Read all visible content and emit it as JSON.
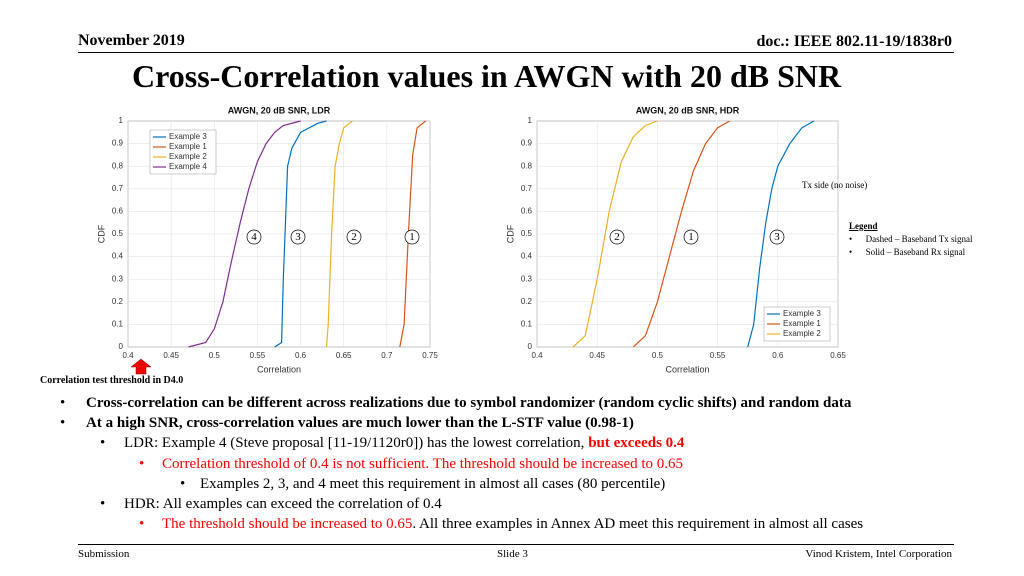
{
  "header": {
    "date": "November 2019",
    "doc": "doc.: IEEE 802.11-19/1838r0"
  },
  "title": "Cross-Correlation values in AWGN with 20 dB SNR",
  "chart_data": [
    {
      "type": "line",
      "title": "AWGN, 20 dB SNR, LDR",
      "x_label": "Correlation",
      "y_label": "CDF",
      "xlim": [
        0.4,
        0.75
      ],
      "xticks": [
        0.4,
        0.45,
        0.5,
        0.55,
        0.6,
        0.65,
        0.7,
        0.75
      ],
      "ylim": [
        0,
        1
      ],
      "yticks": [
        0,
        0.1,
        0.2,
        0.3,
        0.4,
        0.5,
        0.6,
        0.7,
        0.8,
        0.9,
        1
      ],
      "grid": true,
      "legend": "upper left",
      "series": [
        {
          "name": "Example 3",
          "color": "#0072bd",
          "x": [
            0.57,
            0.578,
            0.58,
            0.585,
            0.59,
            0.6,
            0.62,
            0.63
          ],
          "values": [
            0,
            0.02,
            0.3,
            0.8,
            0.88,
            0.95,
            0.99,
            1
          ]
        },
        {
          "name": "Example 1",
          "color": "#d95319",
          "x": [
            0.715,
            0.72,
            0.725,
            0.73,
            0.735,
            0.745
          ],
          "values": [
            0,
            0.1,
            0.5,
            0.85,
            0.97,
            1
          ]
        },
        {
          "name": "Example 2",
          "color": "#edb120",
          "x": [
            0.63,
            0.632,
            0.636,
            0.64,
            0.645,
            0.65,
            0.66
          ],
          "values": [
            0,
            0.1,
            0.5,
            0.8,
            0.9,
            0.97,
            1
          ]
        },
        {
          "name": "Example 4",
          "color": "#7e2f8e",
          "x": [
            0.47,
            0.49,
            0.5,
            0.51,
            0.52,
            0.53,
            0.54,
            0.55,
            0.56,
            0.57,
            0.58,
            0.6
          ],
          "values": [
            0,
            0.02,
            0.08,
            0.2,
            0.38,
            0.55,
            0.7,
            0.82,
            0.9,
            0.95,
            0.98,
            1
          ]
        }
      ],
      "annotations": [
        "4",
        "3",
        "2",
        "1"
      ]
    },
    {
      "type": "line",
      "title": "AWGN, 20 dB SNR, HDR",
      "x_label": "Correlation",
      "y_label": "CDF",
      "xlim": [
        0.4,
        0.65
      ],
      "xticks": [
        0.4,
        0.45,
        0.5,
        0.55,
        0.6,
        0.65
      ],
      "ylim": [
        0,
        1
      ],
      "yticks": [
        0,
        0.1,
        0.2,
        0.3,
        0.4,
        0.5,
        0.6,
        0.7,
        0.8,
        0.9,
        1
      ],
      "grid": true,
      "legend": "lower right",
      "series": [
        {
          "name": "Example 3",
          "color": "#0072bd",
          "x": [
            0.575,
            0.58,
            0.585,
            0.59,
            0.595,
            0.6,
            0.61,
            0.62,
            0.63
          ],
          "values": [
            0,
            0.1,
            0.35,
            0.55,
            0.7,
            0.8,
            0.9,
            0.97,
            1
          ]
        },
        {
          "name": "Example 1",
          "color": "#d95319",
          "x": [
            0.48,
            0.49,
            0.5,
            0.51,
            0.52,
            0.53,
            0.54,
            0.55,
            0.56
          ],
          "values": [
            0,
            0.05,
            0.2,
            0.4,
            0.6,
            0.78,
            0.9,
            0.97,
            1
          ]
        },
        {
          "name": "Example 2",
          "color": "#edb120",
          "x": [
            0.43,
            0.44,
            0.45,
            0.46,
            0.47,
            0.48,
            0.49,
            0.5
          ],
          "values": [
            0,
            0.05,
            0.3,
            0.6,
            0.82,
            0.93,
            0.98,
            1
          ]
        }
      ],
      "annotations": [
        "2",
        "1",
        "3"
      ]
    }
  ],
  "tx_note": "Tx side (no noise)",
  "legend_box": {
    "title": "Legend",
    "items": [
      "Dashed – Baseband Tx signal",
      "Solid – Baseband Rx signal"
    ]
  },
  "threshold_note": "Correlation test threshold in D4.0",
  "bullets": [
    {
      "level": 1,
      "segments": [
        {
          "text": "Cross-correlation can be different across realizations due to symbol randomizer (random cyclic shifts) and random data",
          "bold": true
        }
      ]
    },
    {
      "level": 1,
      "segments": [
        {
          "text": "At a high SNR, cross-correlation values are much lower than the L-STF value (0.98-1)",
          "bold": true
        }
      ]
    },
    {
      "level": 2,
      "segments": [
        {
          "text": "LDR: Example 4 (Steve proposal [11-19/1120r0]) has the lowest correlation, "
        },
        {
          "text": "but exceeds 0.4",
          "bold": true,
          "color": "#ff0000"
        }
      ]
    },
    {
      "level": 3,
      "segments": [
        {
          "text": "Correlation threshold of 0.4 is not sufficient. The threshold should be increased to 0.65",
          "color": "#ff0000"
        }
      ]
    },
    {
      "level": 4,
      "segments": [
        {
          "text": "Examples 2, 3, and 4 meet this requirement in almost all cases (80 percentile)"
        }
      ]
    },
    {
      "level": 2,
      "segments": [
        {
          "text": "HDR: All examples can exceed the correlation of 0.4"
        }
      ]
    },
    {
      "level": 3,
      "segments": [
        {
          "text": "The threshold should be increased to 0.65",
          "color": "#ff0000"
        },
        {
          "text": ". All three examples in Annex AD meet this requirement in almost all cases"
        }
      ]
    }
  ],
  "footer": {
    "left": "Submission",
    "center": "Slide 3",
    "right": "Vinod Kristem, Intel Corporation"
  }
}
